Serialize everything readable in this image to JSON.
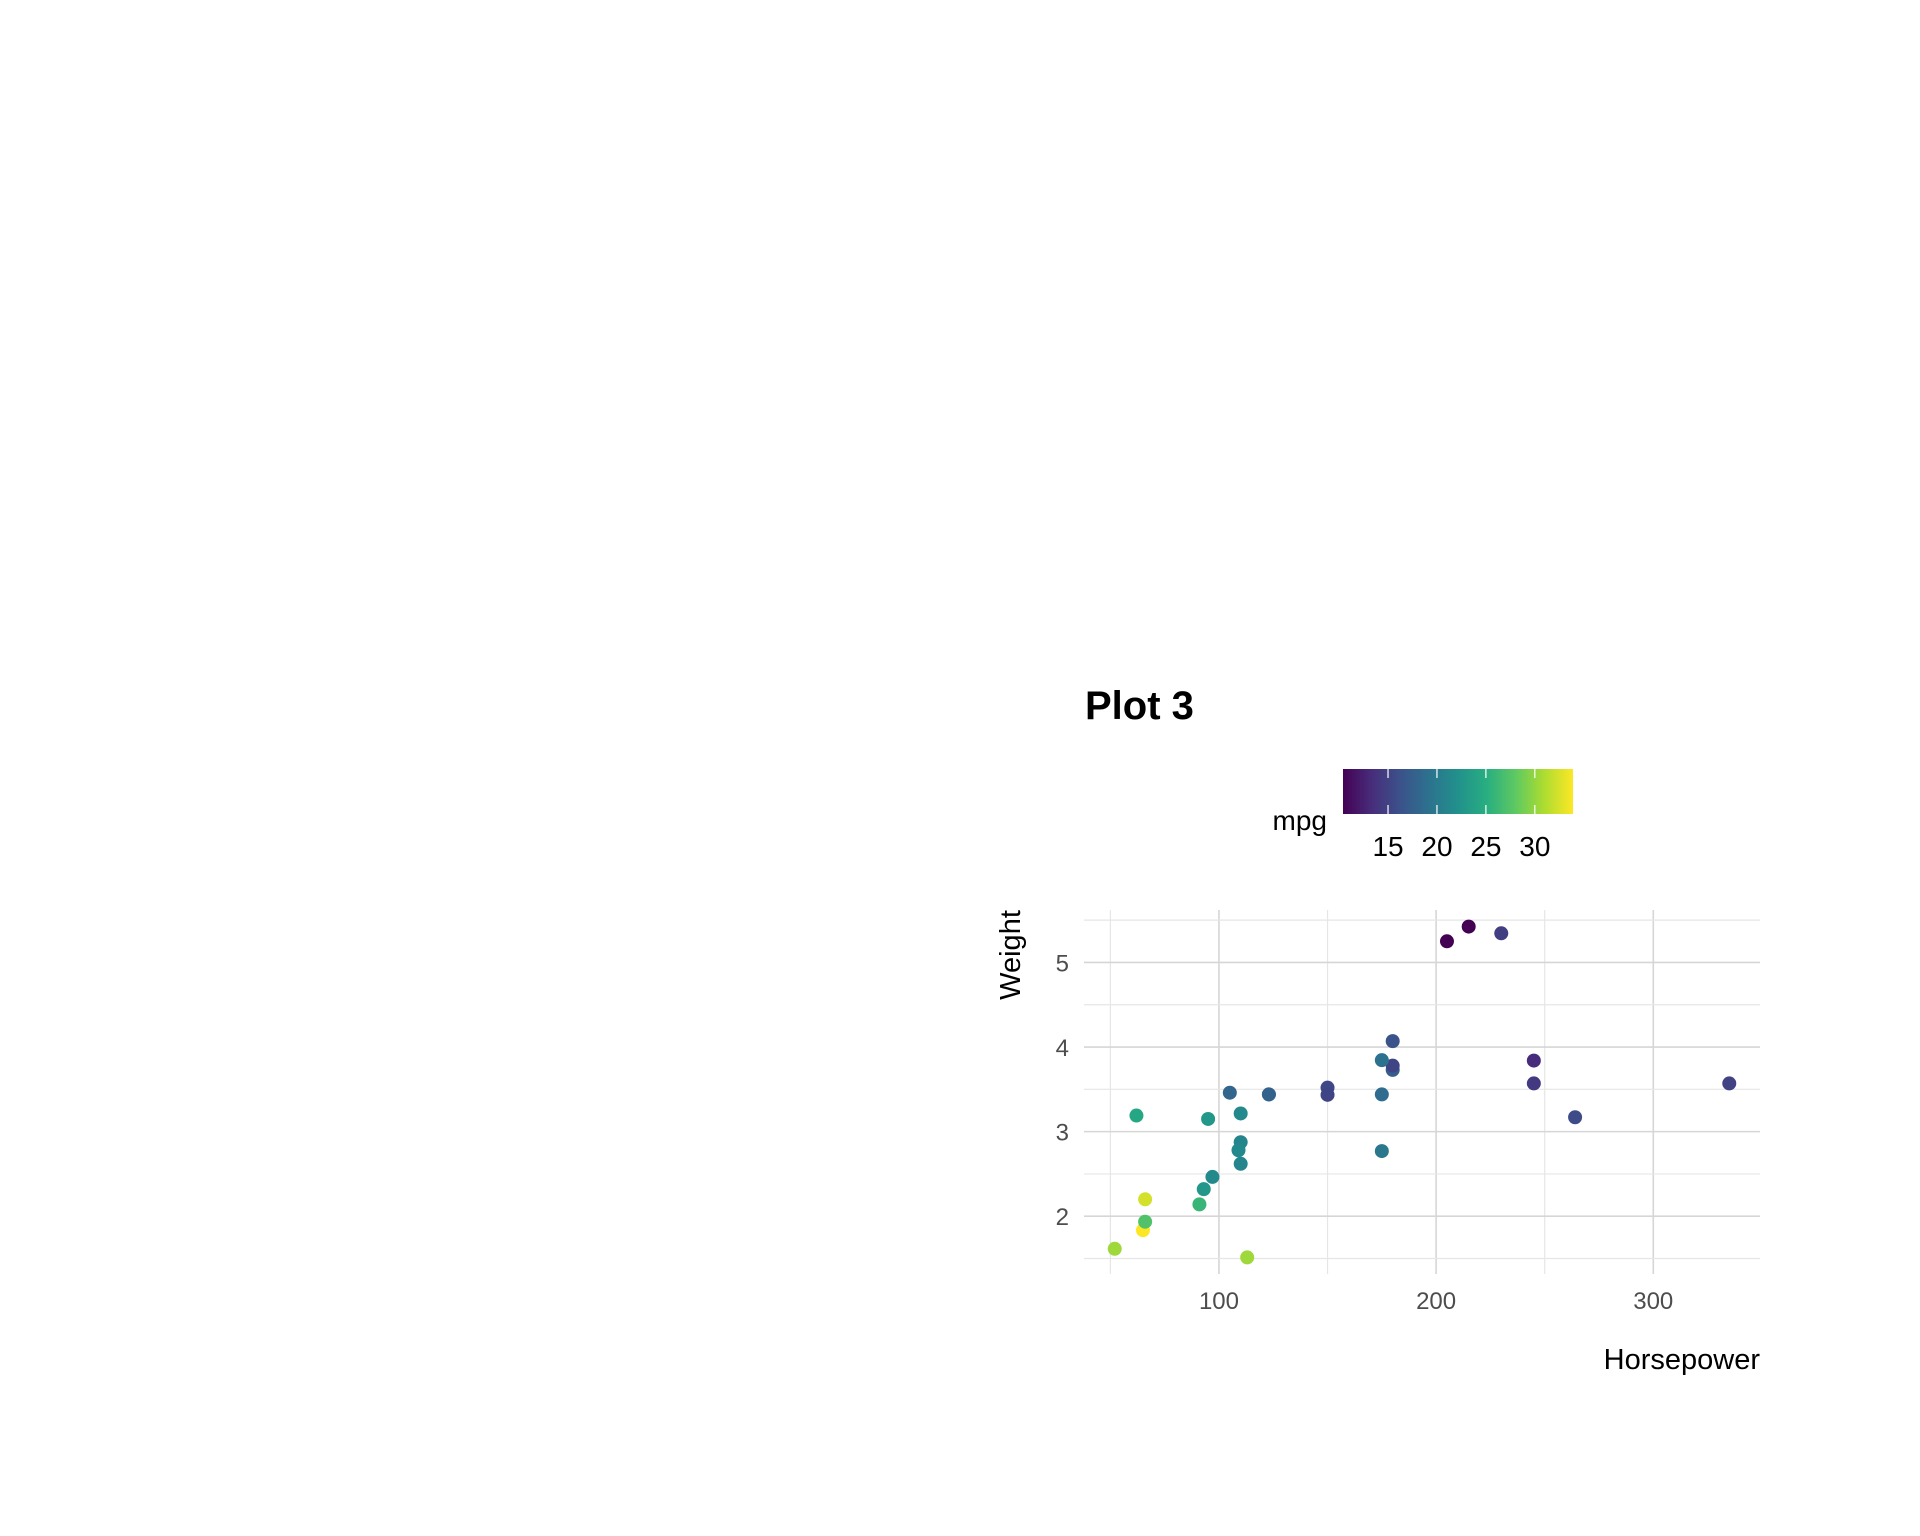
{
  "chart_data": {
    "type": "scatter",
    "title": "Plot 3",
    "xlabel": "Horsepower",
    "ylabel": "Weight",
    "xlim": [
      37.85,
      349.15
    ],
    "ylim": [
      1.317,
      5.62
    ],
    "x_ticks": [
      100,
      200,
      300
    ],
    "y_ticks": [
      2,
      3,
      4,
      5
    ],
    "grid": true,
    "legend": {
      "title": "mpg",
      "type": "colorbar",
      "palette": "viridis",
      "range": [
        10.4,
        33.9
      ],
      "ticks": [
        15,
        20,
        25,
        30
      ],
      "placement": "top"
    },
    "points": [
      {
        "hp": 110,
        "wt": 2.62,
        "mpg": 21.0
      },
      {
        "hp": 110,
        "wt": 2.875,
        "mpg": 21.0
      },
      {
        "hp": 93,
        "wt": 2.32,
        "mpg": 22.8
      },
      {
        "hp": 110,
        "wt": 3.215,
        "mpg": 21.4
      },
      {
        "hp": 175,
        "wt": 3.44,
        "mpg": 18.7
      },
      {
        "hp": 105,
        "wt": 3.46,
        "mpg": 18.1
      },
      {
        "hp": 245,
        "wt": 3.57,
        "mpg": 14.3
      },
      {
        "hp": 62,
        "wt": 3.19,
        "mpg": 24.4
      },
      {
        "hp": 95,
        "wt": 3.15,
        "mpg": 22.8
      },
      {
        "hp": 123,
        "wt": 3.44,
        "mpg": 19.2
      },
      {
        "hp": 123,
        "wt": 3.44,
        "mpg": 17.8
      },
      {
        "hp": 180,
        "wt": 4.07,
        "mpg": 16.4
      },
      {
        "hp": 180,
        "wt": 3.73,
        "mpg": 17.3
      },
      {
        "hp": 180,
        "wt": 3.78,
        "mpg": 15.2
      },
      {
        "hp": 205,
        "wt": 5.25,
        "mpg": 10.4
      },
      {
        "hp": 215,
        "wt": 5.424,
        "mpg": 10.4
      },
      {
        "hp": 230,
        "wt": 5.345,
        "mpg": 14.7
      },
      {
        "hp": 66,
        "wt": 2.2,
        "mpg": 32.4
      },
      {
        "hp": 52,
        "wt": 1.615,
        "mpg": 30.4
      },
      {
        "hp": 65,
        "wt": 1.835,
        "mpg": 33.9
      },
      {
        "hp": 97,
        "wt": 2.465,
        "mpg": 21.5
      },
      {
        "hp": 150,
        "wt": 3.52,
        "mpg": 15.5
      },
      {
        "hp": 150,
        "wt": 3.435,
        "mpg": 15.2
      },
      {
        "hp": 245,
        "wt": 3.84,
        "mpg": 13.3
      },
      {
        "hp": 175,
        "wt": 3.845,
        "mpg": 19.2
      },
      {
        "hp": 66,
        "wt": 1.935,
        "mpg": 27.3
      },
      {
        "hp": 91,
        "wt": 2.14,
        "mpg": 26.0
      },
      {
        "hp": 113,
        "wt": 1.513,
        "mpg": 30.4
      },
      {
        "hp": 264,
        "wt": 3.17,
        "mpg": 15.8
      },
      {
        "hp": 175,
        "wt": 2.77,
        "mpg": 19.7
      },
      {
        "hp": 335,
        "wt": 3.57,
        "mpg": 15.0
      },
      {
        "hp": 109,
        "wt": 2.78,
        "mpg": 21.4
      }
    ]
  }
}
